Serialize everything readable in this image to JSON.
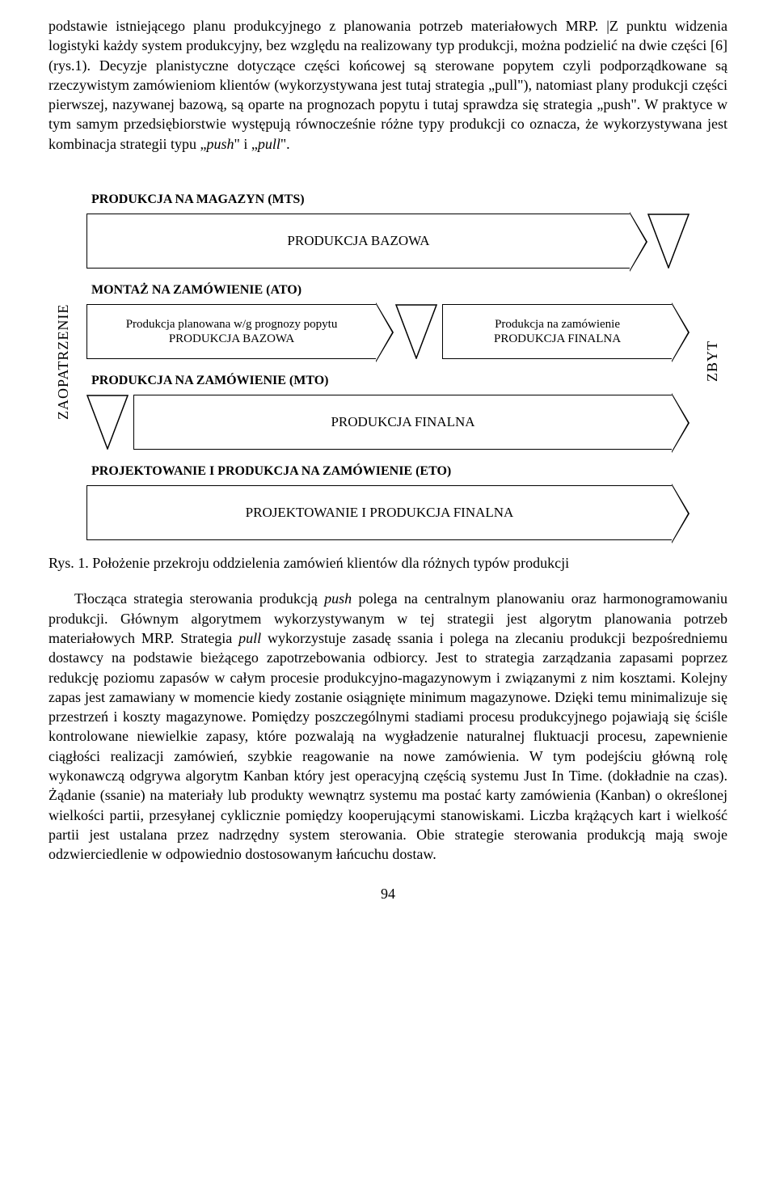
{
  "intro_paragraph_html": "podstawie istniejącego planu produkcyjnego z planowania potrzeb materiałowych MRP. |Z punktu widzenia logistyki każdy system produkcyjny, bez względu na realizowany typ produkcji, można podzielić na dwie części [6] (rys.1). Decyzje planistyczne dotyczące części końcowej są sterowane popytem czyli podporządkowane są rzeczywistym zamówieniom klientów (wykorzystywana jest tutaj strategia „pull\"), natomiast plany produkcji części pierwszej, nazywanej bazową, są oparte na prognozach popytu i tutaj sprawdza się strategia „push\". W praktyce w tym samym przedsiębiorstwie występują równocześnie różne typy produkcji co oznacza, że wykorzystywana jest kombinacja strategii typu „<span class=\"italic\">push</span>\" i „<span class=\"italic\">pull</span>\".",
  "diagram": {
    "left_label": "ZAOPATRZENIE",
    "right_label": "ZBYT",
    "mts": {
      "title": "PRODUKCJA NA MAGAZYN (MTS)",
      "box": "PRODUKCJA  BAZOWA"
    },
    "ato": {
      "title": "MONTAŻ NA ZAMÓWIENIE (ATO)",
      "left_line1": "Produkcja planowana w/g prognozy popytu",
      "left_line2": "PRODUKCJA BAZOWA",
      "right_line1": "Produkcja na  zamówienie",
      "right_line2": "PRODUKCJA FINALNA"
    },
    "mto": {
      "title": "PRODUKCJA NA ZAMÓWIENIE (MTO)",
      "box": "PRODUKCJA  FINALNA"
    },
    "eto": {
      "title": "PROJEKTOWANIE I PRODUKCJA NA ZAMÓWIENIE (ETO)",
      "box": "PROJEKTOWANIE  I  PRODUKCJA  FINALNA"
    },
    "border_color": "#000000",
    "background": "#ffffff"
  },
  "caption": "Rys. 1. Położenie przekroju oddzielenia zamówień klientów dla różnych typów produkcji",
  "body_paragraph_html": "Tłocząca strategia sterowania produkcją <span class=\"italic\">push</span> polega na centralnym planowaniu oraz harmonogramowaniu produkcji. Głównym algorytmem wykorzystywanym w tej strategii jest algorytm planowania potrzeb materiałowych MRP. Strategia <span class=\"italic\">pull</span> wykorzystuje zasadę ssania i polega na zlecaniu produkcji bezpośredniemu dostawcy na podstawie bieżącego zapotrzebowania odbiorcy. Jest to strategia zarządzania zapasami poprzez redukcję poziomu zapasów w całym procesie produkcyjno-magazynowym i związanymi z nim kosztami. Kolejny zapas jest zamawiany w momencie kiedy zostanie osiągnięte minimum magazynowe. Dzięki temu minimalizuje się przestrzeń i koszty magazynowe. Pomiędzy poszczególnymi stadiami procesu produkcyjnego pojawiają się ściśle kontrolowane niewielkie zapasy, które pozwalają na wygładzenie naturalnej fluktuacji procesu, zapewnienie ciągłości realizacji zamówień, szybkie reagowanie na nowe zamówienia. W tym podejściu główną rolę wykonawczą odgrywa algorytm Kanban który jest operacyjną częścią systemu Just In Time. (dokładnie na czas). Żądanie (ssanie) na materiały lub produkty wewnątrz systemu ma postać karty zamówienia (Kanban) o określonej wielkości partii, przesyłanej cyklicznie pomiędzy kooperującymi stanowiskami. Liczba krążących kart i wielkość partii jest ustalana przez nadrzędny system sterowania. Obie strategie sterowania produkcją mają swoje odzwierciedlenie w odpowiednio dostosowanym łańcuchu dostaw.",
  "page_number": "94"
}
